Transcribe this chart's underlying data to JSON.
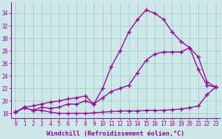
{
  "background_color": "#cce8e8",
  "grid_color": "#aacccc",
  "line_color": "#990099",
  "marker_style": "+",
  "marker_size": 4,
  "line_width": 1.0,
  "xlabel": "Windchill (Refroidissement éolien,°C)",
  "xlabel_fontsize": 6.5,
  "tick_fontsize": 5.5,
  "xlim": [
    -0.5,
    23.5
  ],
  "ylim": [
    17.3,
    35.8
  ],
  "yticks": [
    18,
    20,
    22,
    24,
    26,
    28,
    30,
    32,
    34
  ],
  "xticks": [
    0,
    1,
    2,
    3,
    4,
    5,
    6,
    7,
    8,
    9,
    10,
    11,
    12,
    13,
    14,
    15,
    16,
    17,
    18,
    19,
    20,
    21,
    22,
    23
  ],
  "line1_x": [
    0,
    1,
    2,
    3,
    4,
    5,
    6,
    7,
    8,
    9,
    10,
    11,
    12,
    13,
    14,
    15,
    16,
    17,
    18,
    19,
    20,
    21,
    22,
    23
  ],
  "line1_y": [
    18.2,
    18.9,
    18.5,
    18.5,
    18.2,
    18.0,
    18.0,
    18.0,
    18.0,
    18.1,
    18.2,
    18.3,
    18.4,
    18.4,
    18.4,
    18.5,
    18.5,
    18.5,
    18.6,
    18.7,
    18.9,
    19.2,
    21.0,
    22.2
  ],
  "line2_x": [
    0,
    1,
    2,
    3,
    4,
    5,
    6,
    7,
    8,
    9,
    10,
    11,
    12,
    13,
    14,
    15,
    16,
    17,
    18,
    19,
    20,
    21,
    22,
    23
  ],
  "line2_y": [
    18.2,
    19.0,
    19.2,
    19.5,
    19.8,
    20.0,
    20.3,
    20.5,
    20.8,
    19.5,
    20.5,
    21.5,
    22.0,
    22.5,
    24.5,
    26.5,
    27.5,
    27.8,
    27.8,
    27.8,
    28.5,
    27.0,
    23.0,
    22.2
  ],
  "line3_x": [
    0,
    1,
    2,
    3,
    4,
    5,
    6,
    7,
    8,
    9,
    10,
    11,
    12,
    13,
    14,
    15,
    16,
    17,
    18,
    19,
    20,
    21,
    22,
    23
  ],
  "line3_y": [
    18.2,
    18.9,
    18.5,
    19.0,
    18.8,
    19.0,
    19.5,
    19.5,
    20.0,
    19.5,
    22.0,
    25.5,
    28.0,
    31.0,
    33.0,
    34.5,
    34.0,
    33.0,
    31.0,
    29.5,
    28.5,
    25.0,
    22.5,
    22.2
  ]
}
